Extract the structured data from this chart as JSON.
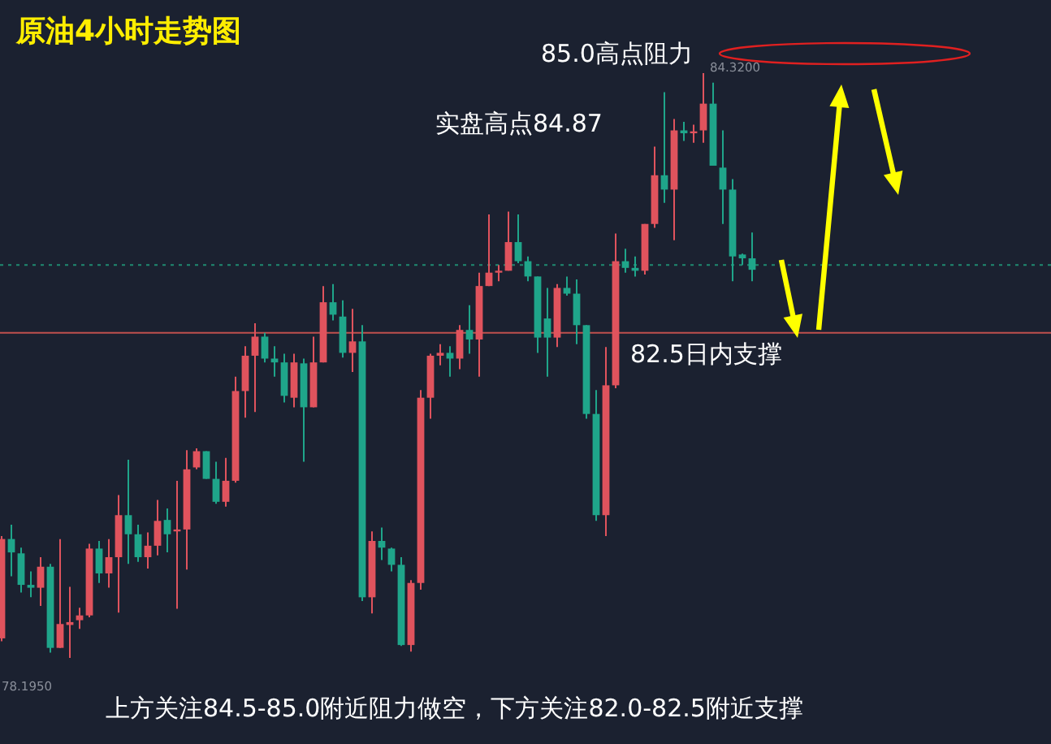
{
  "chart_data": {
    "type": "candlestick",
    "title": "原油4小时走势图",
    "categories": [
      null,
      null,
      null,
      null,
      null,
      null,
      null,
      null,
      null,
      null,
      null,
      null,
      null,
      null,
      null,
      null,
      null,
      null,
      null,
      null,
      null,
      null,
      null,
      null,
      null,
      null,
      null,
      null,
      null,
      null,
      null,
      null,
      null,
      null,
      null,
      null,
      null,
      null,
      null,
      null,
      null,
      null,
      null,
      null,
      null,
      null,
      null,
      null,
      null,
      null,
      null,
      null,
      null,
      null,
      null,
      null,
      null,
      null,
      null,
      null,
      null,
      null,
      null,
      null,
      null,
      null,
      null,
      null,
      null,
      null,
      null,
      null,
      null,
      null,
      null,
      null,
      null,
      null
    ],
    "ohlc": [
      [
        78.4,
        79.47,
        78.37,
        79.44
      ],
      [
        79.44,
        79.59,
        79.05,
        79.3
      ],
      [
        79.29,
        79.35,
        78.88,
        78.96
      ],
      [
        78.96,
        79.1,
        78.83,
        78.93
      ],
      [
        78.93,
        79.25,
        78.74,
        79.15
      ],
      [
        79.15,
        79.18,
        78.25,
        78.3
      ],
      [
        78.3,
        79.44,
        78.3,
        78.55
      ],
      [
        78.54,
        78.94,
        78.195,
        78.57
      ],
      [
        78.59,
        78.72,
        78.5,
        78.64
      ],
      [
        78.64,
        79.39,
        78.62,
        79.34
      ],
      [
        79.34,
        79.42,
        78.98,
        79.08
      ],
      [
        79.08,
        79.44,
        78.93,
        79.25
      ],
      [
        79.25,
        79.9,
        78.67,
        79.69
      ],
      [
        79.69,
        80.27,
        79.18,
        79.49
      ],
      [
        79.49,
        79.59,
        79.2,
        79.25
      ],
      [
        79.25,
        79.51,
        79.13,
        79.37
      ],
      [
        79.37,
        79.85,
        79.27,
        79.63
      ],
      [
        79.64,
        79.76,
        79.3,
        79.49
      ],
      [
        79.52,
        80.05,
        78.71,
        79.54
      ],
      [
        79.54,
        80.37,
        79.12,
        80.17
      ],
      [
        80.19,
        80.39,
        80.17,
        80.36
      ],
      [
        80.36,
        80.36,
        80.07,
        80.07
      ],
      [
        80.07,
        80.25,
        79.81,
        79.83
      ],
      [
        79.83,
        80.29,
        79.78,
        80.05
      ],
      [
        80.05,
        81.14,
        80.03,
        80.99
      ],
      [
        80.99,
        81.46,
        80.71,
        81.36
      ],
      [
        81.36,
        81.7,
        80.77,
        81.56
      ],
      [
        81.56,
        81.6,
        81.29,
        81.33
      ],
      [
        81.33,
        81.46,
        81.14,
        81.29
      ],
      [
        81.29,
        81.38,
        80.87,
        80.94
      ],
      [
        80.92,
        81.38,
        80.82,
        81.29
      ],
      [
        81.28,
        81.33,
        80.25,
        80.82
      ],
      [
        80.82,
        81.56,
        80.82,
        81.29
      ],
      [
        81.29,
        82.09,
        81.29,
        81.92
      ],
      [
        81.92,
        82.11,
        81.73,
        81.79
      ],
      [
        81.77,
        81.94,
        81.34,
        81.39
      ],
      [
        81.39,
        81.85,
        81.19,
        81.51
      ],
      [
        81.51,
        81.68,
        78.79,
        78.83
      ],
      [
        78.83,
        79.52,
        78.66,
        79.42
      ],
      [
        79.42,
        79.56,
        79.22,
        79.35
      ],
      [
        79.34,
        79.35,
        79.1,
        79.17
      ],
      [
        79.17,
        79.25,
        78.32,
        78.33
      ],
      [
        78.33,
        79.01,
        78.26,
        78.98
      ],
      [
        78.98,
        81.0,
        78.91,
        80.92
      ],
      [
        80.92,
        81.38,
        80.7,
        81.36
      ],
      [
        81.36,
        81.48,
        81.26,
        81.39
      ],
      [
        81.39,
        81.46,
        81.14,
        81.33
      ],
      [
        81.33,
        81.68,
        81.22,
        81.63
      ],
      [
        81.63,
        81.89,
        81.38,
        81.53
      ],
      [
        81.53,
        82.23,
        81.14,
        82.09
      ],
      [
        82.09,
        82.84,
        82.09,
        82.23
      ],
      [
        82.23,
        82.31,
        82.14,
        82.25
      ],
      [
        82.25,
        82.87,
        82.25,
        82.55
      ],
      [
        82.55,
        82.84,
        82.33,
        82.35
      ],
      [
        82.35,
        82.4,
        82.14,
        82.19
      ],
      [
        82.19,
        82.19,
        81.39,
        81.55
      ],
      [
        81.75,
        82.07,
        81.14,
        81.55
      ],
      [
        81.55,
        82.11,
        81.45,
        82.07
      ],
      [
        82.07,
        82.19,
        81.99,
        82.01
      ],
      [
        82.01,
        82.16,
        81.48,
        81.68
      ],
      [
        81.68,
        81.68,
        80.7,
        80.75
      ],
      [
        80.75,
        81.0,
        79.63,
        79.69
      ],
      [
        79.69,
        81.45,
        79.47,
        81.05
      ],
      [
        81.05,
        82.64,
        81.02,
        82.35
      ],
      [
        82.35,
        82.48,
        82.23,
        82.28
      ],
      [
        82.28,
        82.4,
        82.19,
        82.25
      ],
      [
        82.25,
        82.74,
        82.21,
        82.74
      ],
      [
        82.74,
        83.55,
        82.7,
        83.25
      ],
      [
        83.25,
        84.12,
        82.96,
        83.1
      ],
      [
        83.1,
        83.84,
        82.57,
        83.72
      ],
      [
        83.72,
        83.81,
        83.61,
        83.69
      ],
      [
        83.69,
        83.78,
        83.59,
        83.71
      ],
      [
        83.72,
        84.32,
        83.59,
        84.0
      ],
      [
        84.0,
        84.22,
        83.35,
        83.35
      ],
      [
        83.33,
        83.72,
        82.74,
        83.1
      ],
      [
        83.1,
        83.21,
        82.14,
        82.4
      ],
      [
        82.42,
        82.43,
        82.31,
        82.38
      ],
      [
        82.38,
        82.65,
        82.14,
        82.26
      ]
    ],
    "ref_lines": [
      {
        "axis": "y",
        "value": 81.6,
        "label": "82.5日内支撑",
        "color": "#c0504d",
        "line_style": "solid"
      },
      {
        "axis": "y",
        "value": 82.31,
        "color": "#1f8a70",
        "line_style": "dotted"
      }
    ],
    "annotations": [
      "85.0高点阻力",
      "实盘高点84.87",
      "上方关注84.5-85.0附近阻力做空，下方关注82.0-82.5附近支撑",
      "84.3200",
      "78.1950"
    ]
  }
}
